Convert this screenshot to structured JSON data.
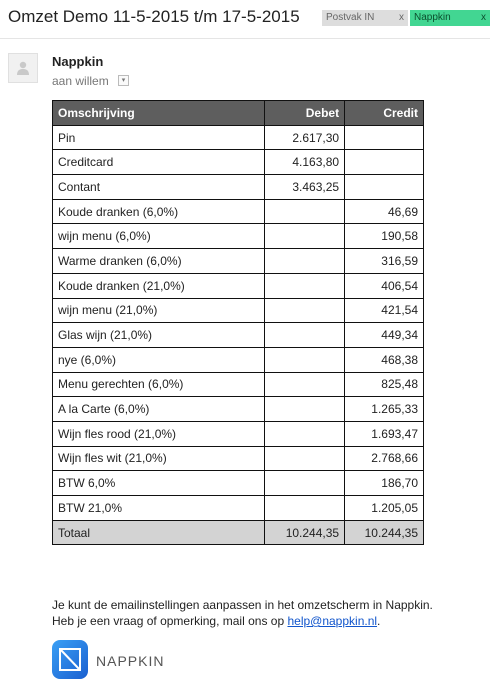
{
  "email": {
    "subject": "Omzet Demo 11-5-2015 t/m 17-5-2015",
    "labels": [
      {
        "name": "Postvak IN",
        "remove": "x",
        "color": "#dddddd"
      },
      {
        "name": "Nappkin",
        "remove": "x",
        "color": "#42d692"
      }
    ],
    "sender": "Nappkin",
    "recipient": "aan willem",
    "recipient_dropdown": "▾"
  },
  "table": {
    "headers": [
      "Omschrijving",
      "Debet",
      "Credit"
    ],
    "rows": [
      [
        "Pin",
        "2.617,30",
        ""
      ],
      [
        "Creditcard",
        "4.163,80",
        ""
      ],
      [
        "Contant",
        "3.463,25",
        ""
      ],
      [
        "Koude dranken (6,0%)",
        "",
        "46,69"
      ],
      [
        "wijn menu (6,0%)",
        "",
        "190,58"
      ],
      [
        "Warme dranken (6,0%)",
        "",
        "316,59"
      ],
      [
        "Koude dranken (21,0%)",
        "",
        "406,54"
      ],
      [
        "wijn menu (21,0%)",
        "",
        "421,54"
      ],
      [
        "Glas wijn (21,0%)",
        "",
        "449,34"
      ],
      [
        "nye (6,0%)",
        "",
        "468,38"
      ],
      [
        "Menu gerechten (6,0%)",
        "",
        "825,48"
      ],
      [
        "A la Carte (6,0%)",
        "",
        "1.265,33"
      ],
      [
        "Wijn fles rood (21,0%)",
        "",
        "1.693,47"
      ],
      [
        "Wijn fles wit (21,0%)",
        "",
        "2.768,66"
      ],
      [
        "BTW 6,0%",
        "",
        "186,70"
      ],
      [
        "BTW 21,0%",
        "",
        "1.205,05"
      ]
    ],
    "total": [
      "Totaal",
      "10.244,35",
      "10.244,35"
    ]
  },
  "footer": {
    "line1": "Je kunt de emailinstellingen aanpassen in het omzetscherm in Nappkin.",
    "line2_prefix": "Heb je een vraag of opmerking, mail ons op ",
    "email_link": "help@nappkin.nl",
    "line2_suffix": ".",
    "brand": "NAPPKIN"
  }
}
